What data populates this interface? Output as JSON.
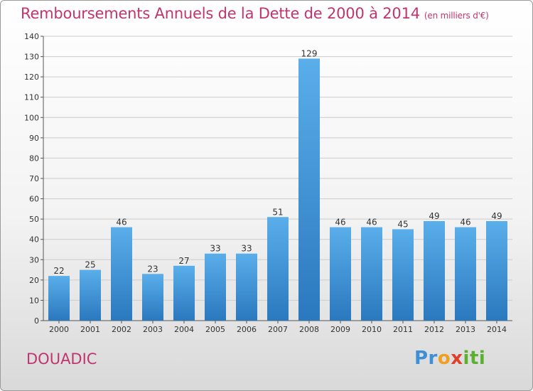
{
  "chart_data": {
    "type": "bar",
    "title": "Remboursements Annuels de la Dette de 2000 à 2014",
    "unit_label": "(en milliers d'€)",
    "categories": [
      "2000",
      "2001",
      "2002",
      "2003",
      "2004",
      "2005",
      "2006",
      "2007",
      "2008",
      "2009",
      "2010",
      "2011",
      "2012",
      "2013",
      "2014"
    ],
    "values": [
      22,
      25,
      46,
      23,
      27,
      33,
      33,
      51,
      129,
      46,
      46,
      45,
      49,
      46,
      49
    ],
    "ylim": [
      0,
      140
    ],
    "yticks": [
      0,
      10,
      20,
      30,
      40,
      50,
      60,
      70,
      80,
      90,
      100,
      110,
      120,
      130,
      140
    ],
    "xlabel": "",
    "ylabel": "",
    "grid": true,
    "bar_color": "#3f93d6"
  },
  "footer": {
    "commune": "DOUADIC",
    "logo_text": [
      "Pr",
      "o",
      "x",
      "iti"
    ]
  },
  "colors": {
    "title": "#c0356e",
    "grid": "#cccccc"
  }
}
